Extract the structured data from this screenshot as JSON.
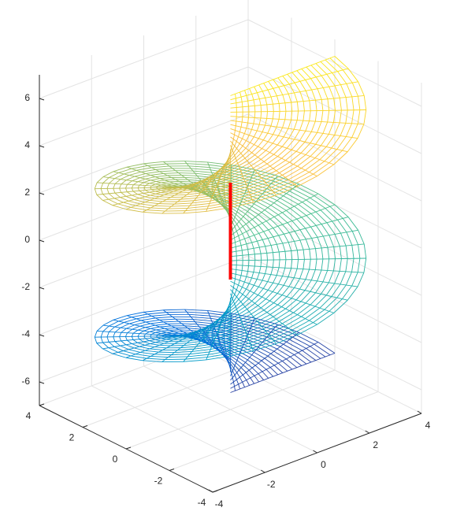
{
  "chart_data": {
    "type": "surface",
    "xlim": [
      -4,
      4
    ],
    "xticks": [
      -4,
      -2,
      0,
      2,
      4
    ],
    "ylim": [
      -4,
      4
    ],
    "yticks": [
      -4,
      -2,
      0,
      2,
      4
    ],
    "zlim": [
      -7,
      7
    ],
    "zticks": [
      -6,
      -4,
      -2,
      0,
      2,
      4,
      6
    ],
    "grid": true,
    "colormap": "parula",
    "axis_line": {
      "color": "#ff0000",
      "z": [
        -1.5,
        2.6
      ]
    }
  }
}
